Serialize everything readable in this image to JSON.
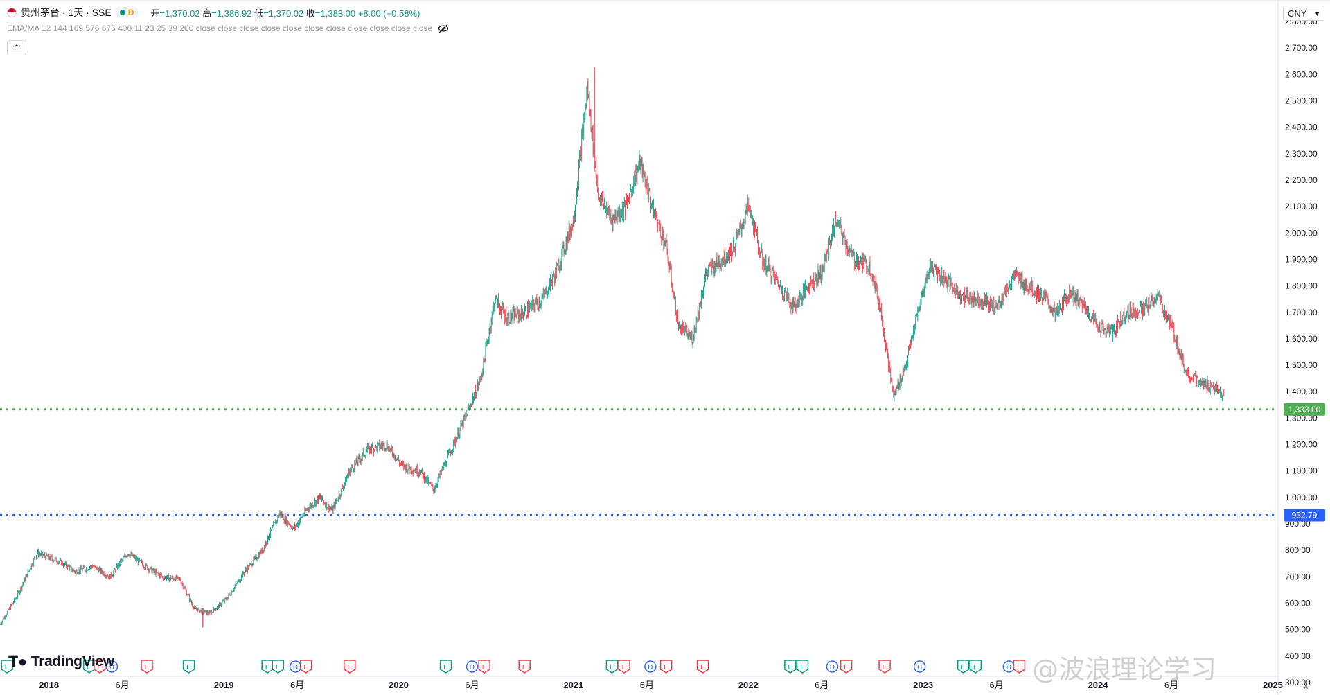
{
  "header": {
    "symbol": "贵州茅台 · 1天 · SSE",
    "badge_letter": "D",
    "ohlc_label_open": "开",
    "open": "=1,370.02",
    "ohlc_label_high": "高",
    "high": "=1,386.92",
    "ohlc_label_low": "低",
    "low": "=1,370.02",
    "ohlc_label_close": "收",
    "close": "=1,383.00",
    "change": "+8.00 (+0.58%)",
    "indicator": "EMA/MA 12 144 169 576 676 400 11 23 25 39 200 close close close close close close close close close close close"
  },
  "currency": "CNY",
  "logo_text": "TradingView",
  "watermark": "@波浪理论学习",
  "colors": {
    "up": "#089981",
    "down": "#f23645",
    "green_line": "#4caf50",
    "blue_line": "#2962ff"
  },
  "chart_data": {
    "type": "candlestick",
    "ylim": [
      300,
      2860
    ],
    "y_ticks": [
      {
        "v": 2800,
        "label": "2,800.00"
      },
      {
        "v": 2700,
        "label": "2,700.00"
      },
      {
        "v": 2600,
        "label": "2,600.00"
      },
      {
        "v": 2500,
        "label": "2,500.00"
      },
      {
        "v": 2400,
        "label": "2,400.00"
      },
      {
        "v": 2300,
        "label": "2,300.00"
      },
      {
        "v": 2200,
        "label": "2,200.00"
      },
      {
        "v": 2100,
        "label": "2,100.00"
      },
      {
        "v": 2000,
        "label": "2,000.00"
      },
      {
        "v": 1900,
        "label": "1,900.00"
      },
      {
        "v": 1800,
        "label": "1,800.00"
      },
      {
        "v": 1700,
        "label": "1,700.00"
      },
      {
        "v": 1600,
        "label": "1,600.00"
      },
      {
        "v": 1500,
        "label": "1,500.00"
      },
      {
        "v": 1400,
        "label": "1,400.00"
      },
      {
        "v": 1300,
        "label": "1,300.00"
      },
      {
        "v": 1200,
        "label": "1,200.00"
      },
      {
        "v": 1100,
        "label": "1,100.00"
      },
      {
        "v": 1000,
        "label": "1,000.00"
      },
      {
        "v": 900,
        "label": "900.00"
      },
      {
        "v": 800,
        "label": "800.00"
      },
      {
        "v": 700,
        "label": "700.00"
      },
      {
        "v": 600,
        "label": "600.00"
      },
      {
        "v": 500,
        "label": "500.00"
      },
      {
        "v": 400,
        "label": "400.00"
      },
      {
        "v": 300,
        "label": "300.00"
      }
    ],
    "x_ticks": [
      {
        "t": 2018.0,
        "label": "2018"
      },
      {
        "t": 2018.42,
        "label": "6月"
      },
      {
        "t": 2019.0,
        "label": "2019"
      },
      {
        "t": 2019.42,
        "label": "6月"
      },
      {
        "t": 2020.0,
        "label": "2020"
      },
      {
        "t": 2020.42,
        "label": "6月"
      },
      {
        "t": 2021.0,
        "label": "2021"
      },
      {
        "t": 2021.42,
        "label": "6月"
      },
      {
        "t": 2022.0,
        "label": "2022"
      },
      {
        "t": 2022.42,
        "label": "6月"
      },
      {
        "t": 2023.0,
        "label": "2023"
      },
      {
        "t": 2023.42,
        "label": "6月"
      },
      {
        "t": 2024.0,
        "label": "2024"
      },
      {
        "t": 2024.42,
        "label": "6月"
      },
      {
        "t": 2025.0,
        "label": "2025"
      }
    ],
    "xlim": [
      2017.72,
      2025.03
    ],
    "price_path": [
      [
        2017.72,
        520
      ],
      [
        2017.82,
        630
      ],
      [
        2017.93,
        790
      ],
      [
        2018.05,
        760
      ],
      [
        2018.15,
        720
      ],
      [
        2018.25,
        740
      ],
      [
        2018.35,
        700
      ],
      [
        2018.45,
        790
      ],
      [
        2018.55,
        740
      ],
      [
        2018.65,
        700
      ],
      [
        2018.75,
        690
      ],
      [
        2018.83,
        580
      ],
      [
        2018.92,
        560
      ],
      [
        2019.02,
        620
      ],
      [
        2019.12,
        720
      ],
      [
        2019.22,
        800
      ],
      [
        2019.32,
        940
      ],
      [
        2019.4,
        880
      ],
      [
        2019.48,
        960
      ],
      [
        2019.55,
        1000
      ],
      [
        2019.62,
        950
      ],
      [
        2019.72,
        1100
      ],
      [
        2019.82,
        1180
      ],
      [
        2019.93,
        1200
      ],
      [
        2020.02,
        1120
      ],
      [
        2020.12,
        1100
      ],
      [
        2020.2,
        1030
      ],
      [
        2020.28,
        1150
      ],
      [
        2020.38,
        1300
      ],
      [
        2020.47,
        1450
      ],
      [
        2020.55,
        1750
      ],
      [
        2020.62,
        1680
      ],
      [
        2020.72,
        1700
      ],
      [
        2020.82,
        1750
      ],
      [
        2020.9,
        1850
      ],
      [
        2021.0,
        2050
      ],
      [
        2021.08,
        2550
      ],
      [
        2021.14,
        2150
      ],
      [
        2021.22,
        2050
      ],
      [
        2021.3,
        2100
      ],
      [
        2021.38,
        2270
      ],
      [
        2021.45,
        2100
      ],
      [
        2021.53,
        1950
      ],
      [
        2021.6,
        1650
      ],
      [
        2021.68,
        1600
      ],
      [
        2021.76,
        1850
      ],
      [
        2021.85,
        1900
      ],
      [
        2021.92,
        1950
      ],
      [
        2022.0,
        2100
      ],
      [
        2022.08,
        1900
      ],
      [
        2022.18,
        1800
      ],
      [
        2022.26,
        1720
      ],
      [
        2022.34,
        1800
      ],
      [
        2022.42,
        1850
      ],
      [
        2022.5,
        2050
      ],
      [
        2022.6,
        1900
      ],
      [
        2022.7,
        1870
      ],
      [
        2022.76,
        1700
      ],
      [
        2022.83,
        1380
      ],
      [
        2022.9,
        1500
      ],
      [
        2022.97,
        1700
      ],
      [
        2023.04,
        1880
      ],
      [
        2023.12,
        1830
      ],
      [
        2023.22,
        1760
      ],
      [
        2023.32,
        1750
      ],
      [
        2023.42,
        1720
      ],
      [
        2023.52,
        1840
      ],
      [
        2023.6,
        1800
      ],
      [
        2023.7,
        1750
      ],
      [
        2023.76,
        1690
      ],
      [
        2023.84,
        1780
      ],
      [
        2023.92,
        1720
      ],
      [
        2024.0,
        1650
      ],
      [
        2024.08,
        1620
      ],
      [
        2024.16,
        1700
      ],
      [
        2024.26,
        1710
      ],
      [
        2024.34,
        1760
      ],
      [
        2024.42,
        1650
      ],
      [
        2024.5,
        1480
      ],
      [
        2024.58,
        1430
      ],
      [
        2024.66,
        1420
      ],
      [
        2024.72,
        1380
      ]
    ],
    "extremes": [
      {
        "t": 2021.12,
        "v": 2627.88
      },
      {
        "t": 2018.88,
        "v": 509.02
      }
    ],
    "levels": [
      {
        "value": 1333.0,
        "label": "1,333.00",
        "color": "#4caf50"
      },
      {
        "value": 932.79,
        "label": "932.79",
        "color": "#2962ff"
      }
    ],
    "events": [
      {
        "t": 2017.76,
        "kind": "E",
        "color": "#089981"
      },
      {
        "t": 2018.23,
        "kind": "E",
        "color": "#089981"
      },
      {
        "t": 2018.29,
        "kind": "E",
        "color": "#f23645"
      },
      {
        "t": 2018.36,
        "kind": "D",
        "color": "#2962ff"
      },
      {
        "t": 2018.56,
        "kind": "E",
        "color": "#f23645"
      },
      {
        "t": 2018.8,
        "kind": "E",
        "color": "#089981"
      },
      {
        "t": 2019.25,
        "kind": "E",
        "color": "#089981"
      },
      {
        "t": 2019.31,
        "kind": "E",
        "color": "#089981"
      },
      {
        "t": 2019.41,
        "kind": "D",
        "color": "#2962ff"
      },
      {
        "t": 2019.47,
        "kind": "E",
        "color": "#f23645"
      },
      {
        "t": 2019.72,
        "kind": "E",
        "color": "#f23645"
      },
      {
        "t": 2020.27,
        "kind": "E",
        "color": "#089981"
      },
      {
        "t": 2020.42,
        "kind": "D",
        "color": "#2962ff"
      },
      {
        "t": 2020.49,
        "kind": "E",
        "color": "#f23645"
      },
      {
        "t": 2020.72,
        "kind": "E",
        "color": "#f23645"
      },
      {
        "t": 2021.22,
        "kind": "E",
        "color": "#089981"
      },
      {
        "t": 2021.29,
        "kind": "E",
        "color": "#f23645"
      },
      {
        "t": 2021.44,
        "kind": "D",
        "color": "#2962ff"
      },
      {
        "t": 2021.53,
        "kind": "E",
        "color": "#f23645"
      },
      {
        "t": 2021.74,
        "kind": "E",
        "color": "#f23645"
      },
      {
        "t": 2022.24,
        "kind": "E",
        "color": "#089981"
      },
      {
        "t": 2022.31,
        "kind": "E",
        "color": "#089981"
      },
      {
        "t": 2022.48,
        "kind": "D",
        "color": "#2962ff"
      },
      {
        "t": 2022.56,
        "kind": "E",
        "color": "#f23645"
      },
      {
        "t": 2022.78,
        "kind": "E",
        "color": "#f23645"
      },
      {
        "t": 2022.98,
        "kind": "D",
        "color": "#2962ff"
      },
      {
        "t": 2023.23,
        "kind": "E",
        "color": "#089981"
      },
      {
        "t": 2023.3,
        "kind": "E",
        "color": "#089981"
      },
      {
        "t": 2023.49,
        "kind": "D",
        "color": "#2962ff"
      },
      {
        "t": 2023.55,
        "kind": "E",
        "color": "#f23645"
      }
    ]
  }
}
